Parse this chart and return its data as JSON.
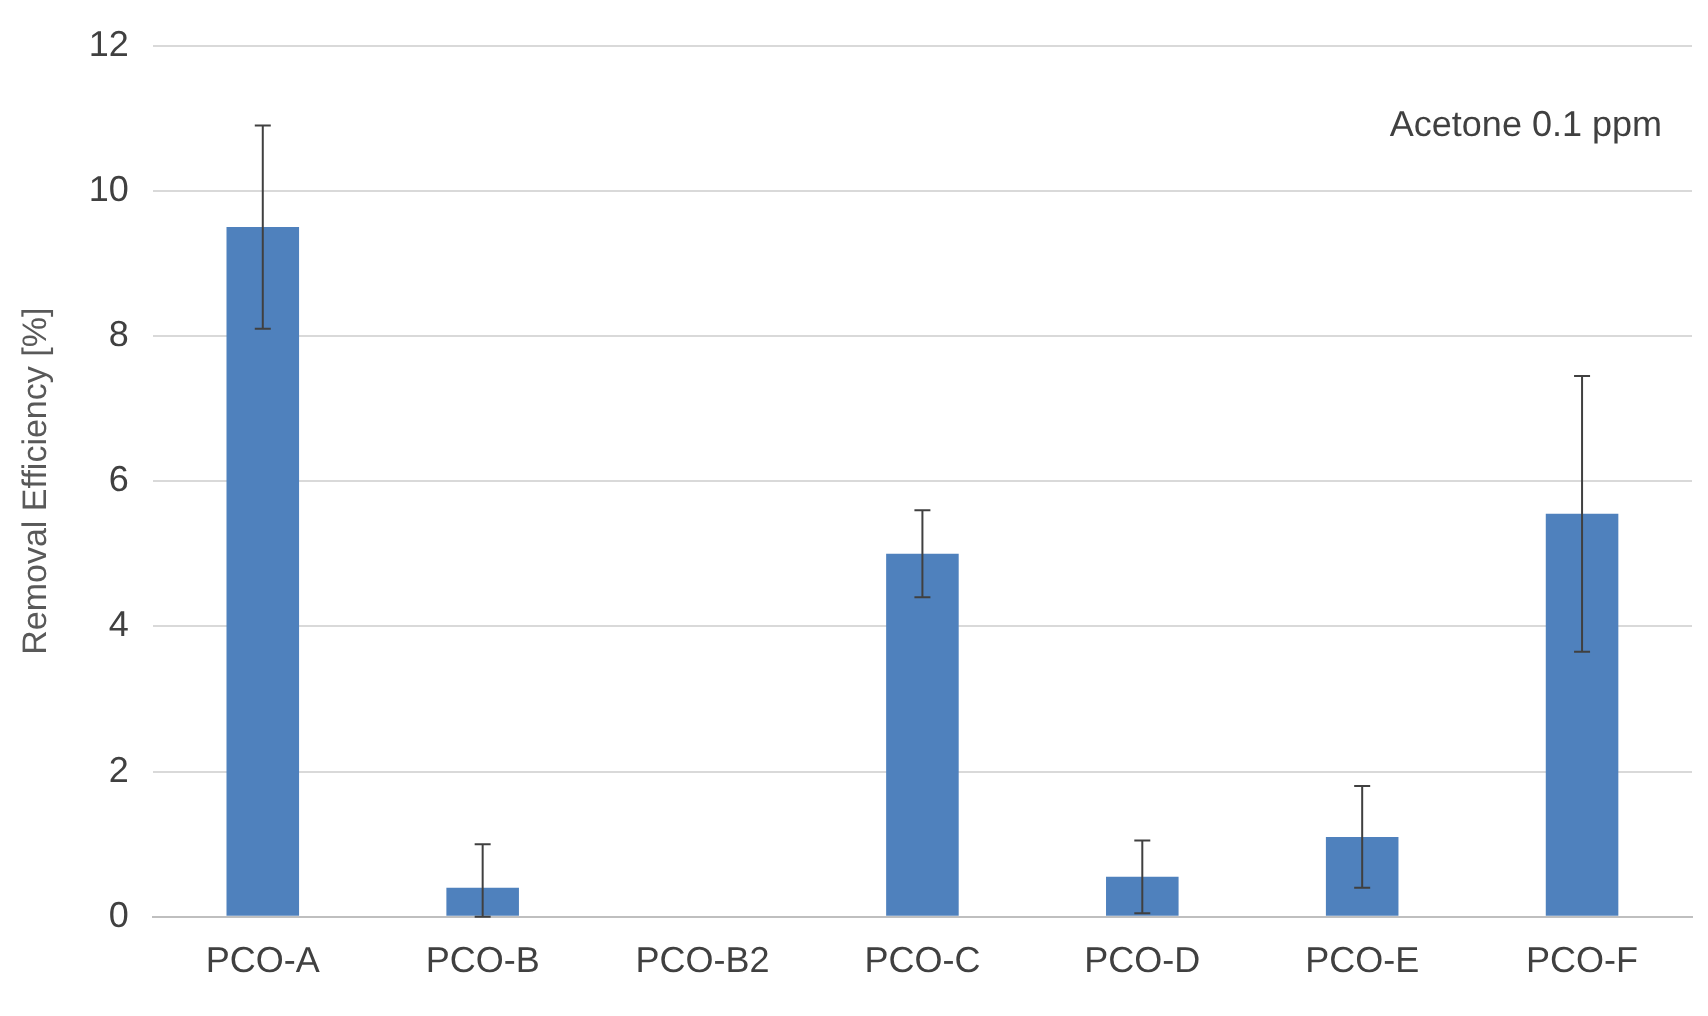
{
  "chart_data": {
    "type": "bar",
    "ylabel": "Removal Efficiency [%]",
    "categories": [
      "PCO-A",
      "PCO-B",
      "PCO-B2",
      "PCO-C",
      "PCO-D",
      "PCO-E",
      "PCO-F"
    ],
    "values": [
      9.5,
      0.4,
      0,
      5.0,
      0.55,
      1.1,
      5.55
    ],
    "errors": [
      1.4,
      [
        0,
        1.0
      ],
      null,
      0.6,
      0.5,
      0.7,
      1.9
    ],
    "color": "#4f81bd",
    "ylim": [
      0,
      12
    ],
    "yticks": [
      0,
      2,
      4,
      6,
      8,
      10,
      12
    ],
    "grid": "y",
    "legend": false,
    "annotations": [
      "Acetone 0.1 ppm"
    ]
  }
}
